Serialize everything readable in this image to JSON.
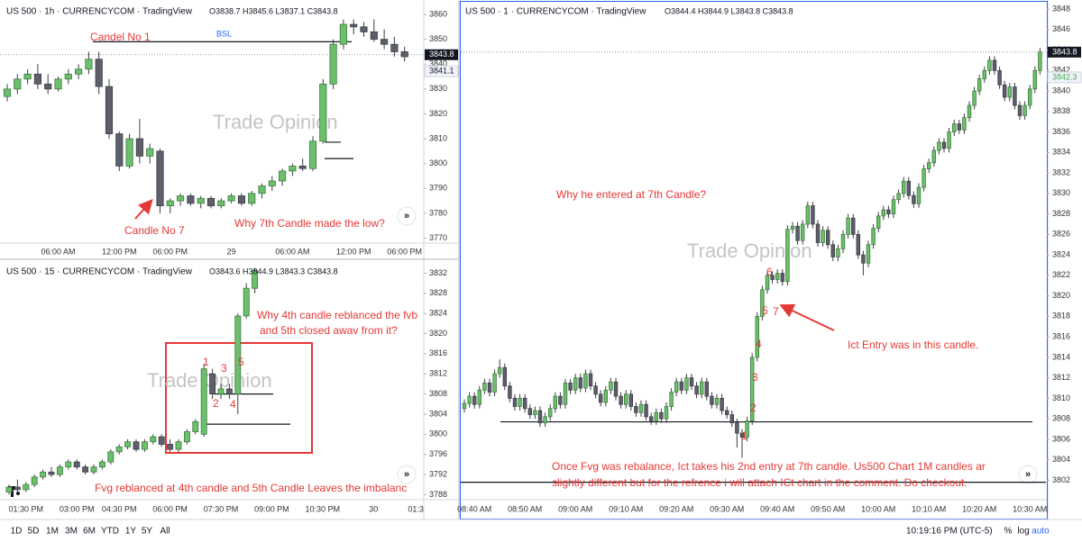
{
  "chart_data": [
    {
      "type": "candlestick",
      "title": "US 500 · 1h · CURRENCYCOM · TradingView",
      "ohlc_label": "O3838.7 H3845.6 L3837.1 C3843.8",
      "categories": [
        null,
        null,
        null,
        null,
        null,
        "06:00 AM",
        null,
        null,
        null,
        null,
        null,
        "12:00 PM",
        null,
        null,
        null,
        null,
        "06:00 PM",
        null,
        null,
        null,
        null,
        null,
        "29",
        null,
        null,
        null,
        null,
        null,
        "06:00 AM",
        null,
        null,
        null,
        null,
        null,
        "12:00 PM",
        null,
        null,
        null,
        null,
        "06:00 PM"
      ],
      "open": [
        3827,
        3830,
        3834,
        3836,
        3832,
        3830,
        3834,
        3836,
        3838,
        3842,
        3831,
        3812,
        3799,
        3810,
        3803,
        3805,
        3783,
        3785,
        3787,
        3784,
        3786,
        3783,
        3785,
        3787,
        3784,
        3788,
        3791,
        3793,
        3797,
        3799,
        3798,
        3809,
        3832,
        3848,
        3856,
        3855,
        3853,
        3850,
        3848,
        3845
      ],
      "high": [
        3832,
        3836,
        3838,
        3840,
        3836,
        3835,
        3838,
        3840,
        3845,
        3845,
        3834,
        3813,
        3812,
        3818,
        3808,
        3806,
        3786,
        3788,
        3788,
        3787,
        3787,
        3786,
        3788,
        3788,
        3789,
        3792,
        3795,
        3798,
        3800,
        3802,
        3811,
        3834,
        3850,
        3858,
        3858,
        3857,
        3858,
        3854,
        3851,
        3847
      ],
      "low": [
        3825,
        3828,
        3832,
        3830,
        3828,
        3829,
        3832,
        3834,
        3836,
        3828,
        3810,
        3797,
        3798,
        3800,
        3800,
        3780,
        3780,
        3783,
        3783,
        3782,
        3782,
        3782,
        3784,
        3783,
        3783,
        3786,
        3789,
        3791,
        3795,
        3797,
        3797,
        3808,
        3830,
        3846,
        3852,
        3851,
        3849,
        3846,
        3843,
        3841
      ],
      "close": [
        3830,
        3834,
        3836,
        3832,
        3830,
        3834,
        3836,
        3838,
        3842,
        3831,
        3812,
        3799,
        3810,
        3803,
        3806,
        3783,
        3785,
        3787,
        3784,
        3786,
        3783,
        3785,
        3787,
        3784,
        3788,
        3791,
        3793,
        3797,
        3799,
        3798,
        3809,
        3832,
        3848,
        3856,
        3855,
        3853,
        3850,
        3848,
        3845,
        3843
      ],
      "up_color": "#6cbf6c",
      "down_color": "#5d606b",
      "ylim": [
        3768,
        3864
      ],
      "yticks": [
        3770,
        3780,
        3790,
        3800,
        3810,
        3820,
        3830,
        3840,
        3850,
        3860
      ],
      "price_marks": [
        3843.8,
        3841.1
      ],
      "levels": [
        3849,
        3808.6,
        3802
      ],
      "annotations": [
        "Candel No 1",
        "BSL",
        "Candle No 7",
        "Why 7th Candle made the low?"
      ],
      "watermark": "Trade Opinion"
    },
    {
      "type": "candlestick",
      "title": "US 500 · 15 · CURRENCYCOM · TradingView",
      "ohlc_label": "O3843.6 H3844.9 L3843.3 C3843.8",
      "categories": [
        null,
        null,
        "01:30 PM",
        null,
        null,
        null,
        null,
        null,
        "03:00 PM",
        null,
        null,
        null,
        null,
        "04:30 PM",
        null,
        null,
        null,
        null,
        null,
        "06:00 PM",
        null,
        null,
        null,
        null,
        null,
        "07:30 PM",
        null,
        null,
        null,
        null,
        null,
        "09:00 PM",
        null,
        null,
        null,
        null,
        null,
        "10:30 PM",
        null,
        null,
        null,
        null,
        null,
        "30",
        null,
        null,
        null,
        null,
        "01:3"
      ],
      "open": [
        3788.5,
        3789.5,
        3789,
        3790,
        3791.5,
        3792.5,
        3792,
        3793.5,
        3794.5,
        3793.5,
        3792.5,
        3793.5,
        3794.5,
        3796.5,
        3797.5,
        3798.5,
        3797,
        3798.5,
        3799.5,
        3798,
        3797,
        3798.5,
        3800.5,
        3800,
        3812,
        3808,
        3809,
        3808,
        3823.5,
        3829,
        null,
        null,
        null,
        null,
        null,
        null,
        null,
        null,
        null,
        null,
        null,
        null,
        null,
        null,
        null,
        null,
        null,
        null,
        null
      ],
      "high": [
        3790,
        3791,
        3790.5,
        3792,
        3793,
        3793.5,
        3794,
        3795,
        3795,
        3794,
        3794,
        3795,
        3797,
        3798,
        3799,
        3799,
        3799,
        3800,
        3800,
        3799,
        3799,
        3801,
        3803,
        3814,
        3813,
        3810,
        3810,
        3824,
        3830,
        3833,
        null,
        null,
        null,
        null,
        null,
        null,
        null,
        null,
        null,
        null,
        null,
        null,
        null,
        null,
        null,
        null,
        null,
        null,
        null
      ],
      "low": [
        3788,
        3788.5,
        3788.5,
        3789.5,
        3791,
        3791.5,
        3791.5,
        3793,
        3793,
        3792,
        3792,
        3793,
        3794,
        3796,
        3797,
        3796.5,
        3796.5,
        3798,
        3797.5,
        3796.5,
        3796.5,
        3798,
        3800,
        3799.5,
        3807,
        3807,
        3807,
        3804,
        3823,
        3828,
        null,
        null,
        null,
        null,
        null,
        null,
        null,
        null,
        null,
        null,
        null,
        null,
        null,
        null,
        null,
        null,
        null,
        null,
        null
      ],
      "close": [
        3789.5,
        3789,
        3790,
        3791.5,
        3792.5,
        3792,
        3793.5,
        3794.5,
        3793.5,
        3792.5,
        3793.5,
        3794.5,
        3796.5,
        3797.5,
        3798.5,
        3797,
        3798.5,
        3799.5,
        3798,
        3797,
        3798.5,
        3800.5,
        3802.5,
        3813,
        3808,
        3809,
        3808,
        3823.5,
        3829,
        3832.5,
        null,
        null,
        null,
        null,
        null,
        null,
        null,
        null,
        null,
        null,
        null,
        null,
        null,
        null,
        null,
        null,
        null,
        null,
        null
      ],
      "up_color": "#6cbf6c",
      "down_color": "#5d606b",
      "ylim": [
        3787,
        3834.4
      ],
      "yticks": [
        3788,
        3792,
        3796,
        3800,
        3804,
        3808,
        3812,
        3816,
        3820,
        3824,
        3828,
        3832
      ],
      "levels": [
        3808,
        3802
      ],
      "annotations": [
        "Why 4th candle reblanced the fvb",
        "and 5th closed awav from it?",
        "1",
        "2",
        "3",
        "4",
        "5",
        "Fvg reblanced at 4th candle and 5th Candle Leaves the imbalanc"
      ],
      "watermark": "Trade Opinion"
    },
    {
      "type": "candlestick",
      "title": "US 500 · 1 · CURRENCYCOM · TradingView",
      "ohlc_label": "O3844.4 H3844.9 L3843.8 C3843.8",
      "categories": [
        null,
        null,
        "08:40 AM",
        null,
        null,
        null,
        null,
        null,
        null,
        null,
        null,
        null,
        "08:50 AM",
        null,
        null,
        null,
        null,
        null,
        null,
        null,
        null,
        null,
        "09:00 AM",
        null,
        null,
        null,
        null,
        null,
        null,
        null,
        null,
        null,
        "09:10 AM",
        null,
        null,
        null,
        null,
        null,
        null,
        null,
        null,
        null,
        "09:20 AM",
        null,
        null,
        null,
        null,
        null,
        null,
        null,
        null,
        null,
        "09:30 AM",
        null,
        null,
        null,
        null,
        null,
        null,
        null,
        null,
        null,
        "09:40 AM",
        null,
        null,
        null,
        null,
        null,
        null,
        null,
        null,
        null,
        "09:50 AM",
        null,
        null,
        null,
        null,
        null,
        null,
        null,
        null,
        null,
        "10:00 AM",
        null,
        null,
        null,
        null,
        null,
        null,
        null,
        null,
        null,
        "10:10 AM",
        null,
        null,
        null,
        null,
        null,
        null,
        null,
        null,
        null,
        "10:20 AM",
        null,
        null,
        null,
        null,
        null,
        null,
        null,
        null,
        null,
        "10:30 AM",
        null,
        null
      ],
      "open": [
        3809.0,
        3809.5,
        3810.2,
        3809.4,
        3810.8,
        3811.5,
        3810.6,
        3812.4,
        3813.0,
        3811.2,
        3810.0,
        3809.2,
        3810.0,
        3809.0,
        3808.4,
        3808.8,
        3807.6,
        3808.2,
        3809.0,
        3810.2,
        3809.4,
        3811.5,
        3810.8,
        3812.0,
        3811.0,
        3812.4,
        3811.2,
        3810.4,
        3809.6,
        3810.8,
        3811.6,
        3810.2,
        3809.4,
        3810.4,
        3809.2,
        3808.6,
        3809.4,
        3808.2,
        3807.8,
        3808.6,
        3808.0,
        3809.2,
        3810.6,
        3811.6,
        3810.8,
        3812.0,
        3811.2,
        3810.4,
        3811.6,
        3810.2,
        3809.4,
        3810.0,
        3808.8,
        3808.4,
        3807.6,
        3806.6,
        3806.2,
        3807.8,
        3814.0,
        3818.0,
        3820.6,
        3822.0,
        3821.6,
        3822.2,
        3821.4,
        3826.5,
        3826.8,
        3825.4,
        3827.0,
        3828.8,
        3827.0,
        3825.2,
        3826.4,
        3825.0,
        3823.8,
        3824.6,
        3826.0,
        3827.6,
        3826.0,
        3824.0,
        3823.2,
        3825.0,
        3826.6,
        3827.8,
        3828.4,
        3828.0,
        3829.4,
        3830.0,
        3831.2,
        3829.8,
        3829.0,
        3830.6,
        3832.4,
        3833.0,
        3834.2,
        3835.0,
        3834.4,
        3836.0,
        3836.8,
        3836.2,
        3837.4,
        3838.6,
        3840.0,
        3841.2,
        3842.0,
        3843.0,
        3842.0,
        3840.6,
        3839.4,
        3840.4,
        3838.6,
        3837.6,
        3838.6,
        3840.2,
        3842.0
      ],
      "high": [
        3809.9,
        3810.6,
        3810.6,
        3811.2,
        3811.9,
        3811.9,
        3812.8,
        3813.8,
        3813.4,
        3811.6,
        3810.4,
        3810.4,
        3810.4,
        3809.4,
        3809.2,
        3809.2,
        3808.6,
        3809.4,
        3810.6,
        3810.6,
        3811.9,
        3811.9,
        3812.4,
        3812.4,
        3812.8,
        3812.8,
        3811.6,
        3810.8,
        3811.2,
        3812.0,
        3812.0,
        3810.6,
        3810.8,
        3810.8,
        3809.6,
        3809.8,
        3809.8,
        3808.6,
        3809.0,
        3809.0,
        3809.6,
        3811.0,
        3812.0,
        3812.0,
        3812.4,
        3812.4,
        3811.6,
        3812.0,
        3812.0,
        3810.6,
        3810.4,
        3810.4,
        3809.2,
        3808.8,
        3808.0,
        3807.0,
        3808.2,
        3814.4,
        3818.4,
        3821.0,
        3822.4,
        3822.4,
        3822.6,
        3822.6,
        3826.9,
        3827.2,
        3827.2,
        3827.4,
        3829.2,
        3829.2,
        3827.4,
        3826.8,
        3826.8,
        3825.4,
        3825.0,
        3826.4,
        3828.0,
        3828.0,
        3826.4,
        3824.4,
        3825.4,
        3827.0,
        3828.2,
        3828.8,
        3828.8,
        3829.8,
        3830.4,
        3831.6,
        3831.6,
        3830.2,
        3831.0,
        3832.8,
        3833.4,
        3834.6,
        3835.4,
        3835.4,
        3836.4,
        3837.2,
        3837.2,
        3837.8,
        3839.0,
        3840.4,
        3841.6,
        3842.4,
        3843.4,
        3843.4,
        3842.4,
        3841.0,
        3840.8,
        3840.8,
        3839.0,
        3839.0,
        3840.6,
        3842.4,
        3844.2
      ],
      "low": [
        3808.6,
        3809.1,
        3809.0,
        3809.0,
        3810.4,
        3810.2,
        3810.2,
        3812.0,
        3810.8,
        3809.6,
        3808.8,
        3808.8,
        3808.6,
        3808.0,
        3808.0,
        3807.2,
        3807.2,
        3807.8,
        3808.6,
        3809.0,
        3809.0,
        3810.4,
        3810.4,
        3810.6,
        3810.6,
        3810.8,
        3810.0,
        3809.2,
        3809.2,
        3810.4,
        3809.8,
        3809.0,
        3809.0,
        3808.8,
        3808.2,
        3808.2,
        3807.8,
        3807.4,
        3807.4,
        3807.6,
        3807.6,
        3808.8,
        3810.2,
        3810.4,
        3810.4,
        3810.8,
        3810.0,
        3810.0,
        3809.8,
        3809.0,
        3809.0,
        3808.4,
        3808.0,
        3807.2,
        3805.2,
        3804.2,
        3805.8,
        3807.4,
        3813.6,
        3817.6,
        3820.2,
        3821.2,
        3821.2,
        3821.0,
        3821.0,
        3826.1,
        3825.0,
        3825.0,
        3826.6,
        3826.6,
        3824.8,
        3824.8,
        3824.6,
        3823.4,
        3823.4,
        3824.2,
        3825.6,
        3825.6,
        3823.6,
        3822.0,
        3822.8,
        3824.6,
        3826.2,
        3827.4,
        3827.6,
        3827.6,
        3829.0,
        3829.6,
        3829.4,
        3828.6,
        3828.6,
        3830.2,
        3832.0,
        3832.6,
        3833.8,
        3834.0,
        3834.0,
        3835.6,
        3835.8,
        3835.8,
        3837.0,
        3838.2,
        3839.6,
        3840.8,
        3841.6,
        3841.6,
        3840.2,
        3839.0,
        3839.0,
        3838.2,
        3837.2,
        3837.2,
        3838.2,
        3839.8,
        3841.6
      ],
      "close": [
        3809.5,
        3810.2,
        3809.4,
        3810.8,
        3811.5,
        3810.6,
        3812.4,
        3813.0,
        3811.2,
        3810.0,
        3809.2,
        3810.0,
        3809.0,
        3808.4,
        3808.8,
        3807.6,
        3808.2,
        3809.0,
        3810.2,
        3809.4,
        3811.5,
        3810.8,
        3812.0,
        3811.0,
        3812.4,
        3811.2,
        3810.4,
        3809.6,
        3810.8,
        3811.6,
        3810.2,
        3809.4,
        3810.4,
        3809.2,
        3808.6,
        3809.4,
        3808.2,
        3807.8,
        3808.6,
        3808.0,
        3809.2,
        3810.6,
        3811.6,
        3810.8,
        3812.0,
        3811.2,
        3810.4,
        3811.6,
        3810.2,
        3809.4,
        3810.0,
        3808.8,
        3808.4,
        3807.6,
        3806.6,
        3806.2,
        3807.8,
        3814.0,
        3818.0,
        3820.6,
        3822.0,
        3821.6,
        3822.2,
        3821.4,
        3826.5,
        3826.8,
        3825.4,
        3827.0,
        3828.8,
        3827.0,
        3825.2,
        3826.4,
        3825.0,
        3823.8,
        3824.6,
        3826.0,
        3827.6,
        3826.0,
        3824.0,
        3823.2,
        3825.0,
        3826.6,
        3827.8,
        3828.4,
        3828.0,
        3829.4,
        3830.0,
        3831.2,
        3829.8,
        3829.0,
        3830.6,
        3832.4,
        3833.0,
        3834.2,
        3835.0,
        3834.4,
        3836.0,
        3836.8,
        3836.2,
        3837.4,
        3838.6,
        3840.0,
        3841.2,
        3842.0,
        3843.0,
        3842.0,
        3840.6,
        3839.4,
        3840.4,
        3838.6,
        3837.6,
        3838.6,
        3840.2,
        3842.0,
        3843.8
      ],
      "up_color": "#6cbf6c",
      "down_color": "#5d606b",
      "ylim": [
        3800.1,
        3848.8
      ],
      "yticks": [
        3802,
        3804,
        3806,
        3808,
        3810,
        3812,
        3814,
        3816,
        3818,
        3820,
        3822,
        3824,
        3826,
        3828,
        3830,
        3832,
        3834,
        3836,
        3838,
        3840,
        3842,
        3844,
        3846,
        3848
      ],
      "price_marks": [
        3843.8,
        3842.3
      ],
      "levels": [
        3807.7,
        3801.8
      ],
      "annotations": [
        "Why he entered at 7th Candle?",
        "Ict Entry was in this candle.",
        "1",
        "2",
        "3",
        "4",
        "5",
        "6",
        "7",
        "Once Fvg was rebalance, Ict takes his 2nd entry at 7th candle. Us500 Chart 1M candles ar",
        "slightly different but for the refrence i will attach ICt chart in the comment. Do checkout."
      ],
      "watermark": "Trade Opinion"
    }
  ],
  "toolbar": {
    "ranges": [
      "1D",
      "5D",
      "1M",
      "3M",
      "6M",
      "YTD",
      "1Y",
      "5Y",
      "All"
    ],
    "clock": "10:19:16 PM (UTC-5)",
    "options": [
      "%",
      "log",
      "auto"
    ]
  }
}
